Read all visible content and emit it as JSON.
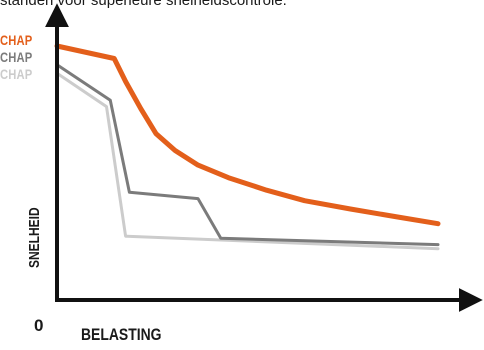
{
  "caption": "standen voor superieure snelheidscontrole.",
  "colors": {
    "axis": "#111111",
    "text": "#1a1a1a"
  },
  "legend": [
    {
      "label": "CHAP",
      "color": "#e35f1b"
    },
    {
      "label": "CHAP",
      "color": "#7b7b7b"
    },
    {
      "label": "CHAP",
      "color": "#cccccc"
    }
  ],
  "chart_data": {
    "type": "line",
    "xlabel": "BELASTING",
    "ylabel": "SNELHEID",
    "origin_label": "0",
    "xlim": [
      0,
      100
    ],
    "ylim": [
      0,
      100
    ],
    "grid": false,
    "legend_position": "top-left",
    "series": [
      {
        "name": "CHAP",
        "color": "#e35f1b",
        "x": [
          0,
          15,
          18,
          22,
          26,
          31,
          37,
          45,
          55,
          65,
          77,
          90,
          100
        ],
        "y": [
          100,
          94,
          83,
          70,
          58,
          50,
          43,
          37,
          31,
          26,
          22,
          18,
          15
        ]
      },
      {
        "name": "CHAP",
        "color": "#7b7b7b",
        "x": [
          0,
          14,
          19,
          37,
          43,
          100
        ],
        "y": [
          91,
          74,
          30,
          27,
          8,
          5
        ]
      },
      {
        "name": "CHAP",
        "color": "#cccccc",
        "x": [
          0,
          13,
          18,
          100
        ],
        "y": [
          87,
          71,
          9,
          3
        ]
      }
    ]
  }
}
